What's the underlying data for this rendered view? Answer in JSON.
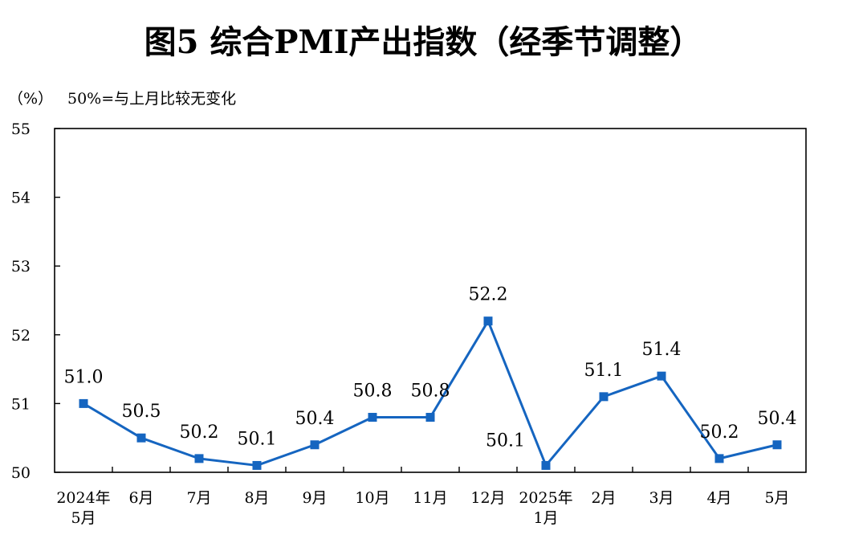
{
  "chart_data": {
    "type": "line",
    "title": "图5  综合PMI产出指数（经季节调整）",
    "ylabel": "（%）",
    "note": "50%=与上月比较无变化",
    "ylim": [
      50,
      55
    ],
    "yticks": [
      "50",
      "51",
      "52",
      "53",
      "54",
      "55"
    ],
    "categories": [
      [
        "2024年",
        "5月"
      ],
      [
        "6月"
      ],
      [
        "7月"
      ],
      [
        "8月"
      ],
      [
        "9月"
      ],
      [
        "10月"
      ],
      [
        "11月"
      ],
      [
        "12月"
      ],
      [
        "2025年",
        "1月"
      ],
      [
        "2月"
      ],
      [
        "3月"
      ],
      [
        "4月"
      ],
      [
        "5月"
      ]
    ],
    "series": [
      {
        "values": [
          51.0,
          50.5,
          50.2,
          50.1,
          50.4,
          50.8,
          50.8,
          52.2,
          50.1,
          51.1,
          51.4,
          50.2,
          50.4
        ],
        "labels": [
          "51.0",
          "50.5",
          "50.2",
          "50.1",
          "50.4",
          "50.8",
          "50.8",
          "52.2",
          "50.1",
          "51.1",
          "51.4",
          "50.2",
          "50.4"
        ],
        "color": "#1565C0"
      }
    ],
    "grid": false,
    "legend": "none"
  }
}
